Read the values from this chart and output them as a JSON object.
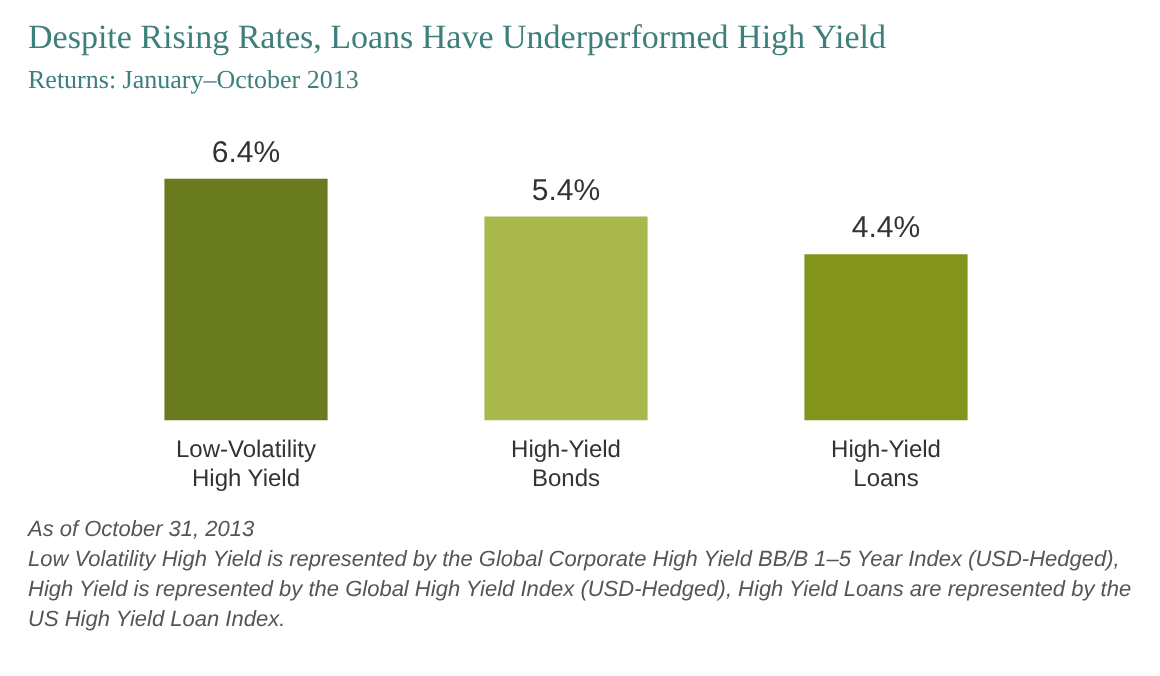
{
  "chart_data": {
    "type": "bar",
    "title": "Despite Rising Rates, Loans Have Underperformed High Yield",
    "subtitle": "Returns: January–October 2013",
    "categories": [
      "Low-Volatility\nHigh Yield",
      "High-Yield\nBonds",
      "High-Yield\nLoans"
    ],
    "values": [
      6.4,
      5.4,
      4.4
    ],
    "value_labels": [
      "6.4%",
      "5.4%",
      "4.4%"
    ],
    "colors": [
      "#6a7a1e",
      "#a9b84a",
      "#83941c"
    ],
    "grid": false,
    "legend": false,
    "annotations": [
      "As of October 31, 2013",
      "Low Volatility High Yield is represented by the Global Corporate High Yield BB/B 1–5 Year Index (USD-Hedged), High Yield is represented by the Global High Yield Index (USD-Hedged), High Yield Loans are represented by the US High Yield Loan Index."
    ]
  }
}
